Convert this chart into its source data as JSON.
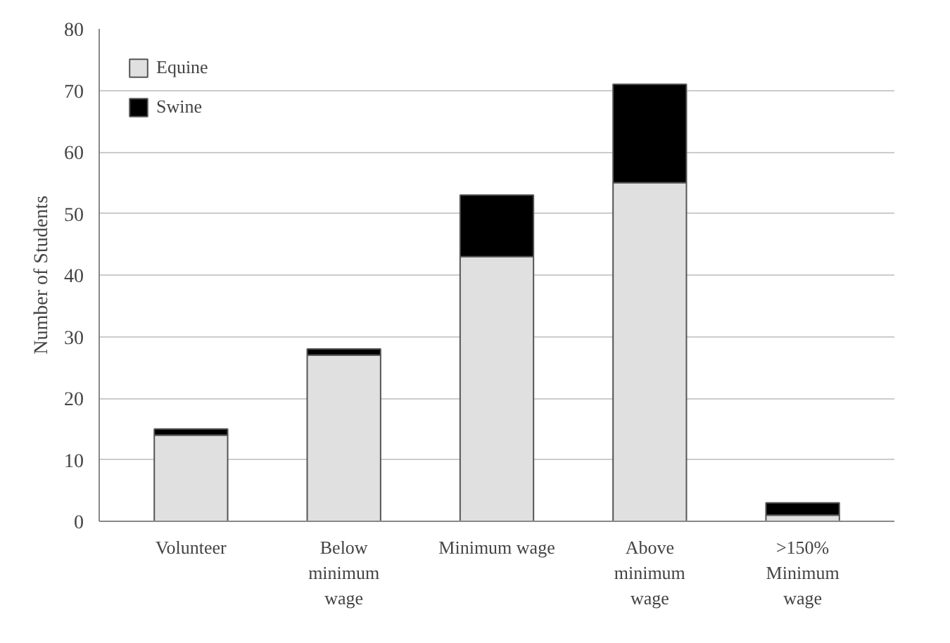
{
  "chart_data": {
    "type": "bar",
    "stacked": true,
    "ylabel": "Number of Students",
    "categories": [
      "Volunteer",
      "Below minimum wage",
      "Minimum wage",
      "Above minimum wage",
      ">150% Minimum wage"
    ],
    "series": [
      {
        "name": "Equine",
        "color": "#e0e0e0",
        "values": [
          14,
          27,
          43,
          55,
          1
        ]
      },
      {
        "name": "Swine",
        "color": "#000000",
        "values": [
          1,
          1,
          10,
          16,
          2
        ]
      }
    ],
    "ylim": [
      0,
      80
    ],
    "yticks": [
      0,
      10,
      20,
      30,
      40,
      50,
      60,
      70,
      80
    ],
    "grid": "y",
    "legend": "top left"
  }
}
